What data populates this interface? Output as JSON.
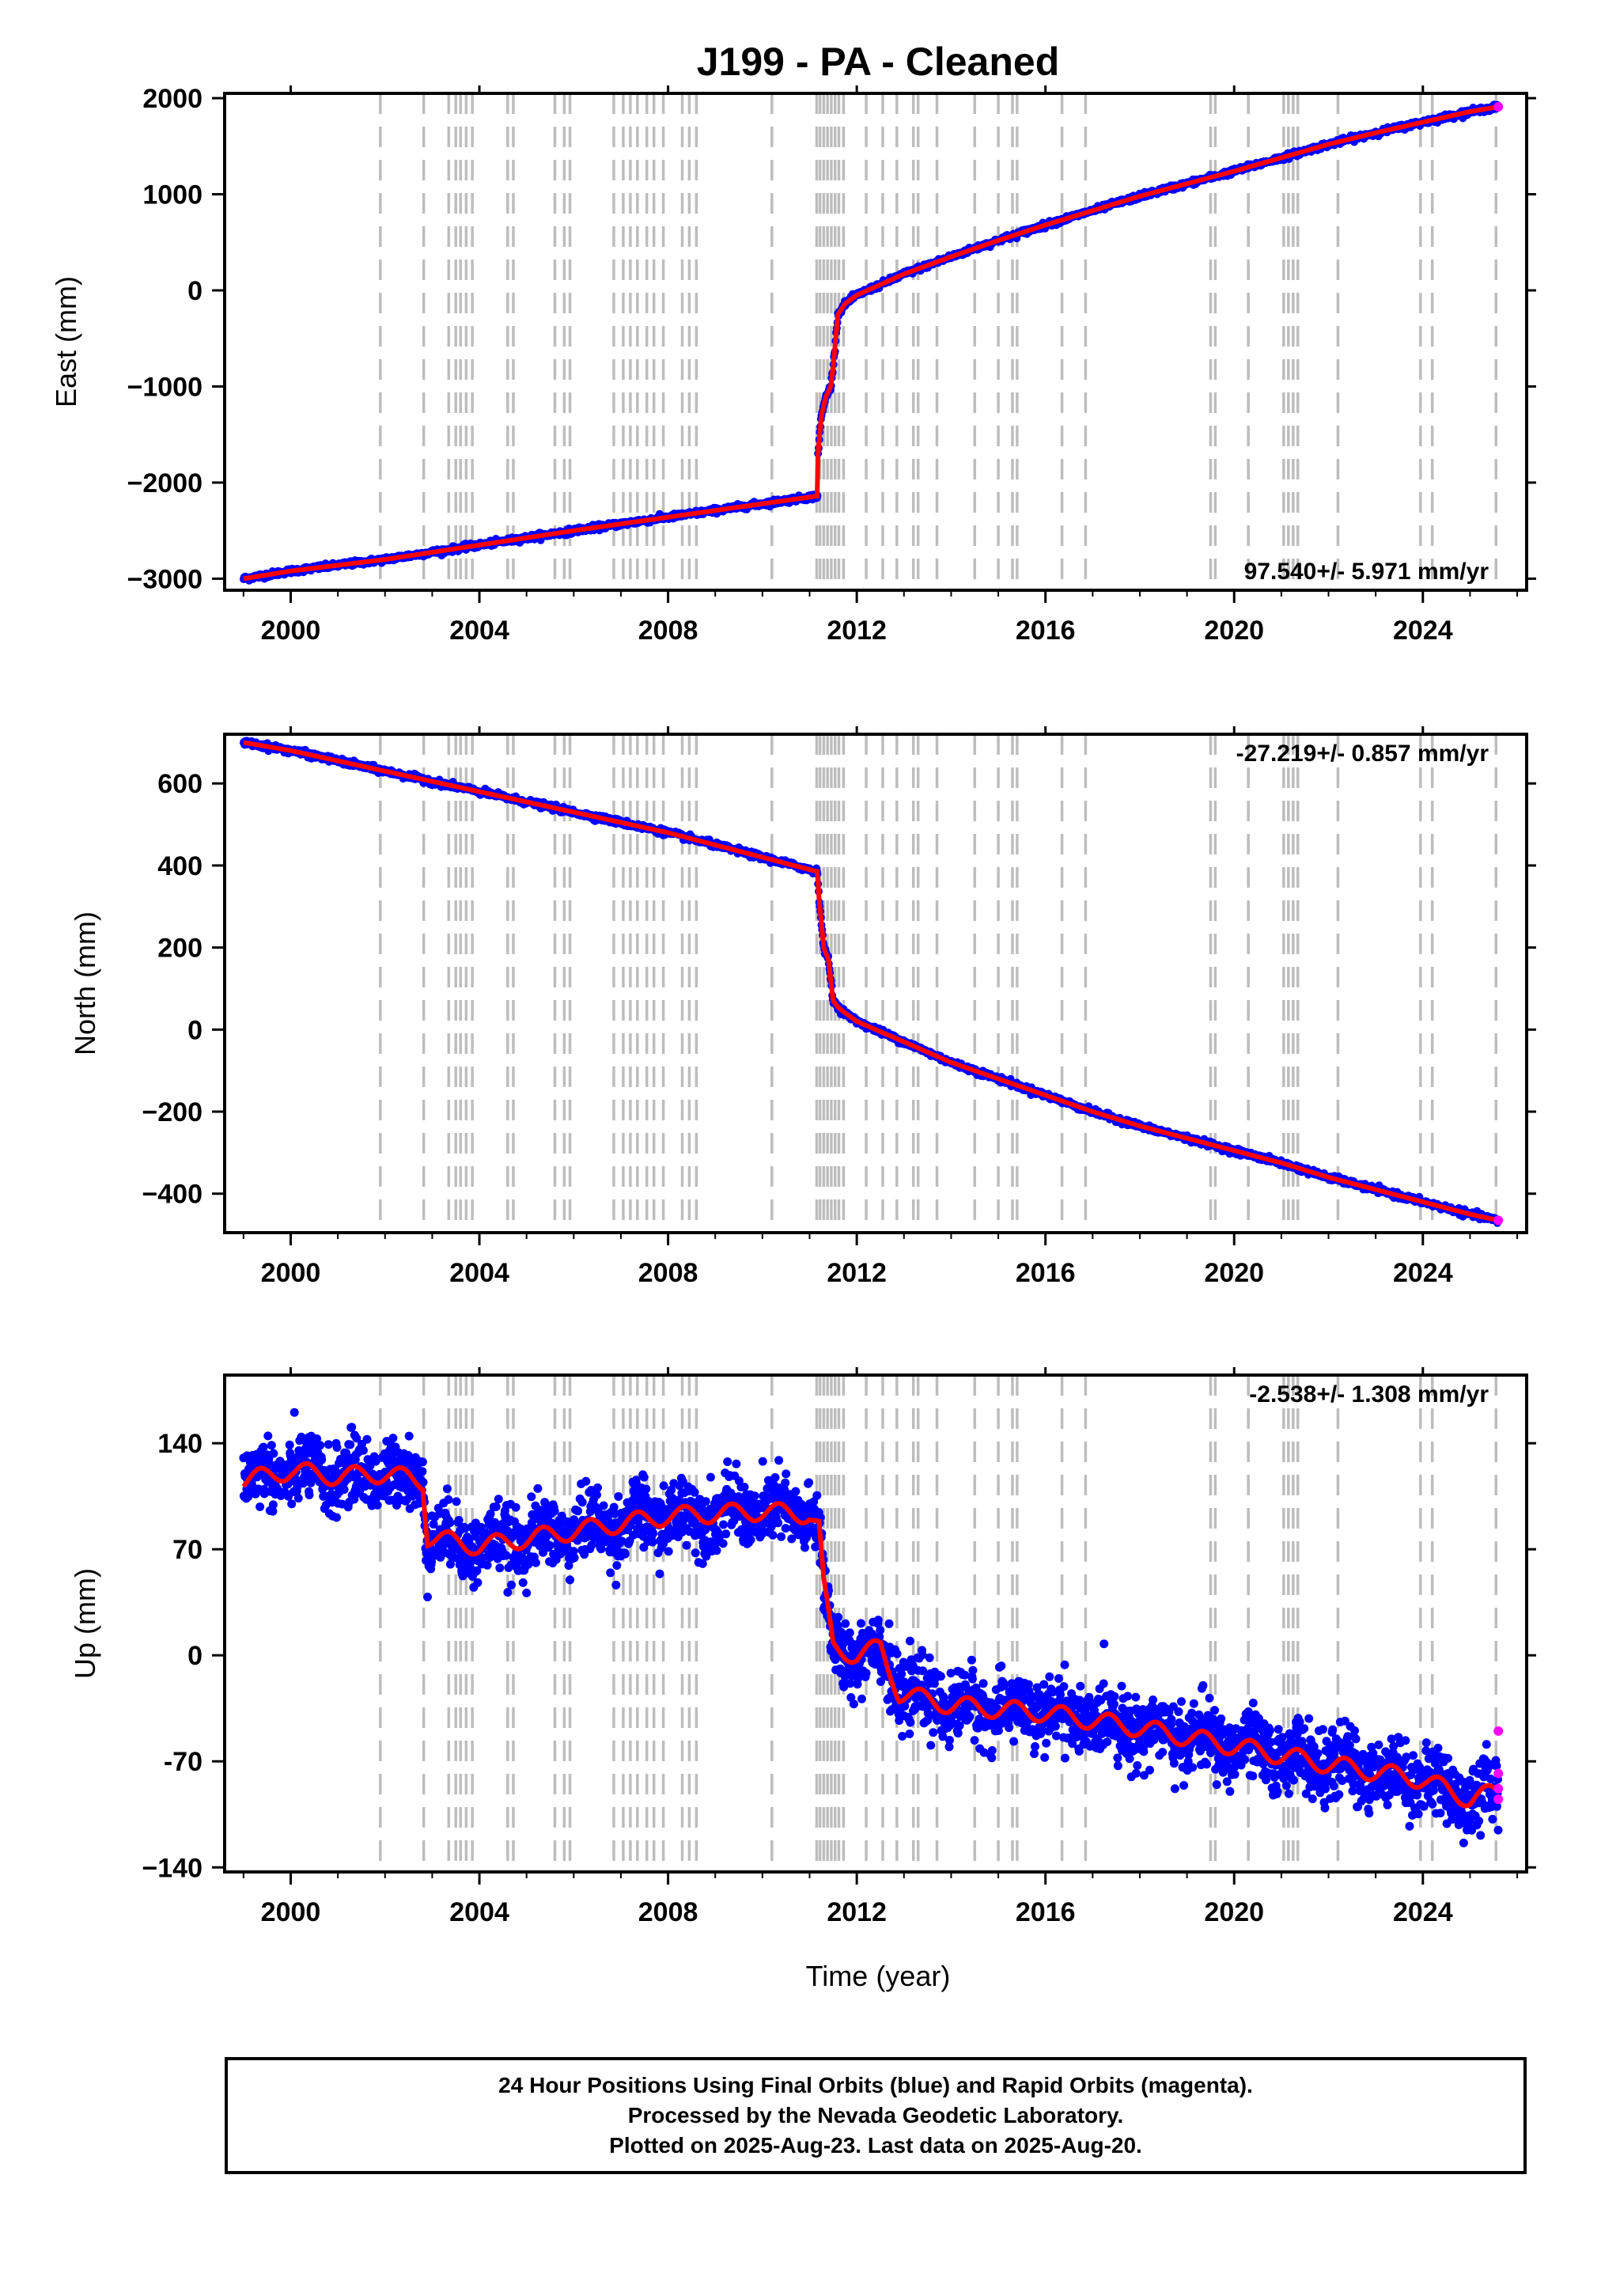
{
  "title": "J199  - PA - Cleaned",
  "colors": {
    "final": "#0000ff",
    "rapid": "#ff00ff",
    "model": "#ff0000",
    "steps": "#bdbdbd"
  },
  "xlabel": "Time (year)",
  "footer": {
    "line1": "24 Hour Positions Using Final Orbits (blue) and Rapid Orbits (magenta).",
    "line2": "Processed by the Nevada Geodetic Laboratory.",
    "line3": "Plotted on 2025-Aug-23. Last data on 2025-Aug-20."
  },
  "chart_data": [
    {
      "type": "scatter",
      "ylabel": "East (mm)",
      "rate_label": "97.540+/- 5.971 mm/yr",
      "xlim": [
        1998.6,
        2026.2
      ],
      "ylim": [
        -3120,
        2050
      ],
      "xticks": [
        2000,
        2004,
        2008,
        2012,
        2016,
        2020,
        2024
      ],
      "yticks": [
        -3000,
        -2000,
        -1000,
        0,
        1000,
        2000
      ],
      "yticklabels": [
        "−3000",
        "−2000",
        "−1000",
        "0",
        "1000",
        "2000"
      ],
      "series": [
        {
          "x": [
            1999.0,
            2000.0,
            2002.0,
            2004.0,
            2006.0,
            2008.0,
            2010.0,
            2011.17,
            2011.18,
            2011.25,
            2011.35,
            2011.45,
            2011.5,
            2011.6,
            2011.75,
            2012.0,
            2013.0,
            2014.0,
            2015.0,
            2016.0,
            2017.0,
            2018.0,
            2019.0,
            2020.0,
            2021.0,
            2022.0,
            2023.0,
            2024.0,
            2025.0,
            2025.6
          ],
          "y": [
            -3000,
            -2920,
            -2800,
            -2650,
            -2500,
            -2360,
            -2220,
            -2140,
            -1700,
            -1300,
            -1100,
            -1000,
            -800,
            -250,
            -140,
            -50,
            170,
            350,
            520,
            680,
            830,
            980,
            1110,
            1240,
            1380,
            1520,
            1640,
            1750,
            1860,
            1910
          ]
        }
      ],
      "rapid": [
        {
          "x": 2025.6,
          "y": 1910
        }
      ]
    },
    {
      "type": "scatter",
      "ylabel": "North (mm)",
      "rate_label": "-27.219+/- 0.857 mm/yr",
      "xlim": [
        1998.6,
        2026.2
      ],
      "ylim": [
        -495,
        720
      ],
      "xticks": [
        2000,
        2004,
        2008,
        2012,
        2016,
        2020,
        2024
      ],
      "yticks": [
        -400,
        -200,
        0,
        200,
        400,
        600
      ],
      "yticklabels": [
        "−400",
        "−200",
        "0",
        "200",
        "400",
        "600"
      ],
      "series": [
        {
          "x": [
            1999.0,
            2000.0,
            2002.0,
            2004.0,
            2006.0,
            2008.0,
            2010.0,
            2011.17,
            2011.2,
            2011.3,
            2011.4,
            2011.5,
            2011.6,
            2011.7,
            2012.0,
            2013.0,
            2014.0,
            2015.0,
            2016.0,
            2017.0,
            2018.0,
            2019.0,
            2020.0,
            2021.0,
            2022.0,
            2023.0,
            2024.0,
            2025.0,
            2025.6
          ],
          "y": [
            700,
            680,
            630,
            580,
            530,
            480,
            420,
            385,
            320,
            200,
            170,
            70,
            55,
            45,
            20,
            -30,
            -80,
            -120,
            -160,
            -200,
            -235,
            -265,
            -295,
            -325,
            -360,
            -390,
            -420,
            -450,
            -465
          ]
        }
      ],
      "rapid": [
        {
          "x": 2025.6,
          "y": -465
        }
      ]
    },
    {
      "type": "scatter",
      "ylabel": "Up (mm)",
      "rate_label": "-2.538+/- 1.308 mm/yr",
      "xlim": [
        1998.6,
        2026.2
      ],
      "ylim": [
        -143,
        185
      ],
      "xticks": [
        2000,
        2004,
        2008,
        2012,
        2016,
        2020,
        2024
      ],
      "yticks": [
        -140,
        -70,
        0,
        70,
        140
      ],
      "yticklabels": [
        "−140",
        "-70",
        "0",
        "70",
        "140"
      ],
      "series": [
        {
          "x": [
            1999.0,
            2000.0,
            2001.0,
            2002.0,
            2002.8,
            2002.9,
            2004.0,
            2006.0,
            2008.0,
            2010.0,
            2011.0,
            2011.2,
            2011.3,
            2011.5,
            2012.0,
            2012.5,
            2012.9,
            2014.0,
            2016.0,
            2018.0,
            2020.0,
            2022.0,
            2024.0,
            2025.0,
            2025.6
          ],
          "y": [
            115,
            122,
            118,
            120,
            115,
            78,
            72,
            82,
            92,
            95,
            93,
            85,
            45,
            5,
            0,
            5,
            -25,
            -33,
            -38,
            -48,
            -60,
            -72,
            -82,
            -95,
            -90
          ]
        }
      ],
      "rapid": [
        {
          "x": 2025.6,
          "y": -50
        },
        {
          "x": 2025.6,
          "y": -78
        },
        {
          "x": 2025.6,
          "y": -88
        },
        {
          "x": 2025.6,
          "y": -95
        }
      ]
    }
  ],
  "step_epochs": [
    2001.9,
    2002.82,
    2003.35,
    2003.5,
    2003.6,
    2003.72,
    2003.85,
    2004.6,
    2004.72,
    2005.6,
    2005.8,
    2005.92,
    2006.85,
    2007.05,
    2007.2,
    2007.35,
    2007.55,
    2007.7,
    2007.9,
    2008.3,
    2008.45,
    2008.6,
    2010.2,
    2011.15,
    2011.22,
    2011.3,
    2011.38,
    2011.46,
    2011.54,
    2011.62,
    2011.72,
    2012.2,
    2012.55,
    2012.85,
    2013.2,
    2013.3,
    2013.7,
    2014.5,
    2015.0,
    2015.3,
    2015.4,
    2016.35,
    2016.85,
    2019.5,
    2019.6,
    2020.3,
    2021.05,
    2021.15,
    2021.25,
    2021.35,
    2022.2,
    2023.95,
    2024.2,
    2025.55
  ]
}
